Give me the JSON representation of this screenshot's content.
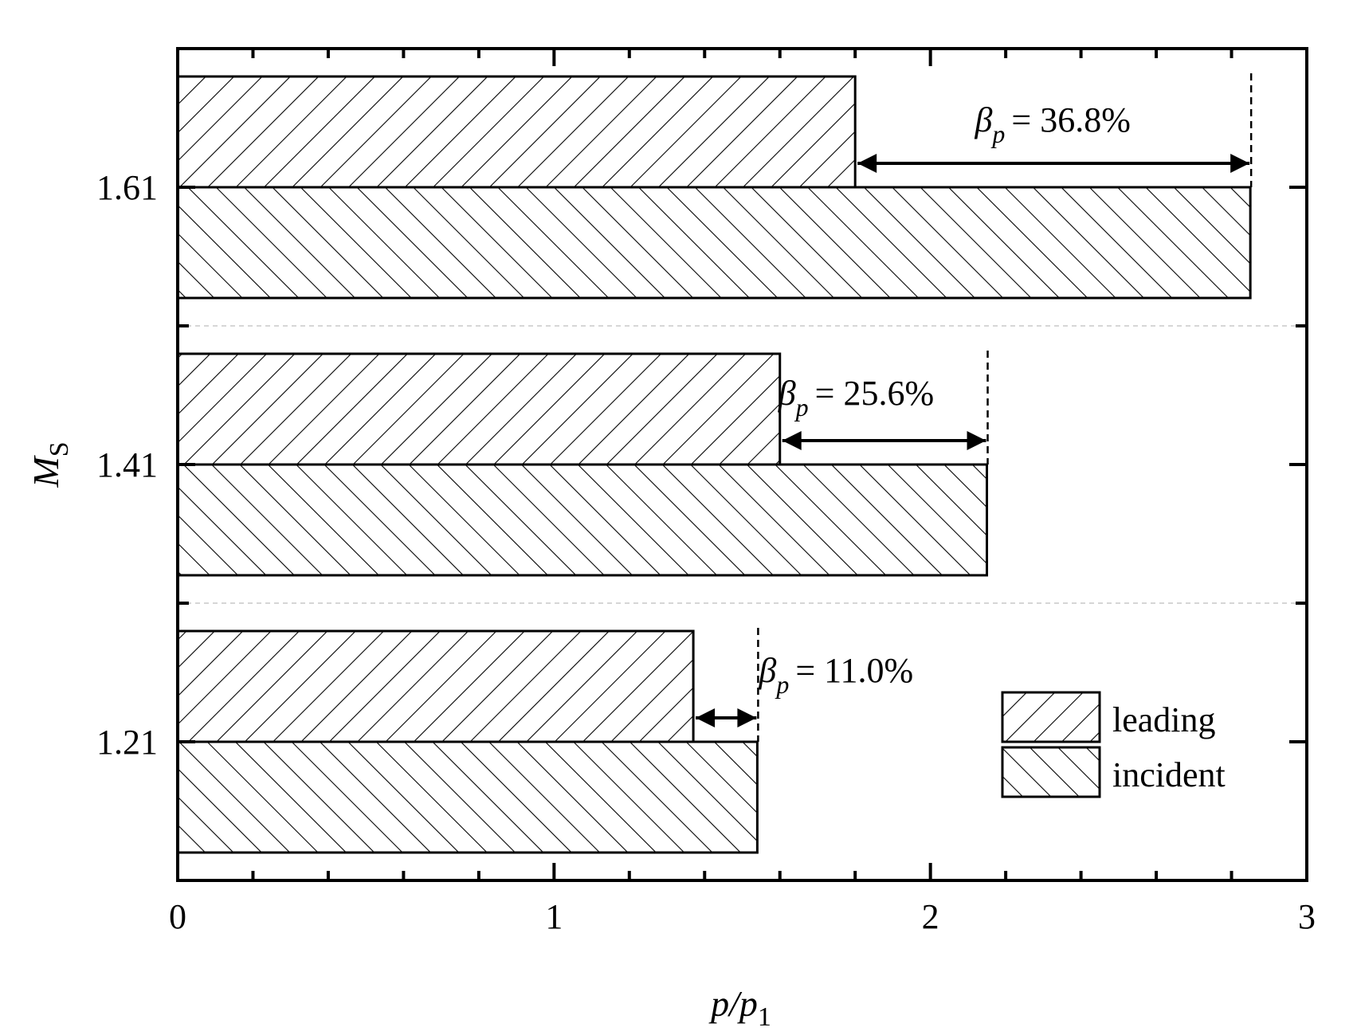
{
  "chart_data": {
    "type": "bar",
    "orientation": "horizontal",
    "categories": [
      "1.21",
      "1.41",
      "1.61"
    ],
    "series": [
      {
        "name": "leading",
        "values": [
          1.37,
          1.6,
          1.8
        ],
        "pattern": "backslash-hatch"
      },
      {
        "name": "incident",
        "values": [
          1.54,
          2.15,
          2.85
        ],
        "pattern": "forward-hatch"
      }
    ],
    "annotations": [
      {
        "category": "1.21",
        "symbol": "β",
        "sub": "p",
        "text": "= 11.0%"
      },
      {
        "category": "1.41",
        "symbol": "β",
        "sub": "p",
        "text": "= 25.6%"
      },
      {
        "category": "1.61",
        "symbol": "β",
        "sub": "p",
        "text": "= 36.8%"
      }
    ],
    "xlabel": {
      "main": "p/p",
      "sub": "1"
    },
    "ylabel": {
      "main": "M",
      "sub": "S"
    },
    "xlim": [
      0,
      3
    ],
    "xticks": [
      "0",
      "1",
      "2",
      "3"
    ],
    "legend_placement": "bottom-right",
    "grid": "dashed horizontal separators between categories",
    "colors": {
      "bar_fill": "#ffffff",
      "stroke": "#000000",
      "separator": "#c8c8c8"
    }
  }
}
